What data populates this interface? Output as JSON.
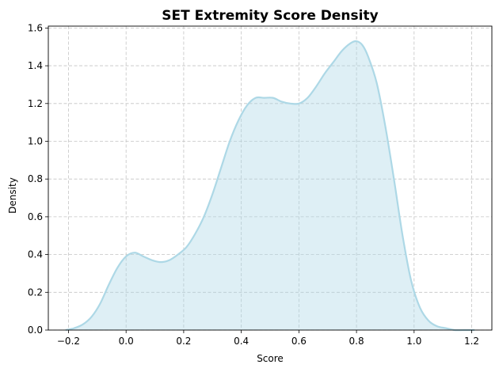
{
  "chart_data": {
    "type": "area",
    "title": "SET Extremity Score Density",
    "xlabel": "Score",
    "ylabel": "Density",
    "xlim": [
      -0.27,
      1.27
    ],
    "ylim": [
      0.0,
      1.61
    ],
    "xticks": [
      -0.2,
      0.0,
      0.2,
      0.4,
      0.6,
      0.8,
      1.0,
      1.2
    ],
    "yticks": [
      0.0,
      0.2,
      0.4,
      0.6,
      0.8,
      1.0,
      1.2,
      1.4,
      1.6
    ],
    "xtick_labels": [
      "−0.2",
      "0.0",
      "0.2",
      "0.4",
      "0.6",
      "0.8",
      "1.0",
      "1.2"
    ],
    "ytick_labels": [
      "0.0",
      "0.2",
      "0.4",
      "0.6",
      "0.8",
      "1.0",
      "1.2",
      "1.4",
      "1.6"
    ],
    "grid": true,
    "series": [
      {
        "x": [
          -0.21,
          -0.18,
          -0.15,
          -0.12,
          -0.09,
          -0.06,
          -0.03,
          0.0,
          0.03,
          0.06,
          0.09,
          0.12,
          0.15,
          0.18,
          0.21,
          0.24,
          0.27,
          0.3,
          0.33,
          0.36,
          0.39,
          0.42,
          0.45,
          0.48,
          0.51,
          0.54,
          0.57,
          0.6,
          0.63,
          0.66,
          0.69,
          0.72,
          0.75,
          0.78,
          0.8,
          0.82,
          0.84,
          0.87,
          0.9,
          0.93,
          0.96,
          0.99,
          1.02,
          1.05,
          1.08,
          1.11,
          1.14,
          1.17,
          1.21
        ],
        "y": [
          0.0,
          0.01,
          0.03,
          0.07,
          0.14,
          0.24,
          0.33,
          0.39,
          0.41,
          0.39,
          0.37,
          0.36,
          0.37,
          0.4,
          0.44,
          0.51,
          0.6,
          0.72,
          0.86,
          1.0,
          1.11,
          1.19,
          1.23,
          1.23,
          1.23,
          1.21,
          1.2,
          1.2,
          1.23,
          1.29,
          1.36,
          1.42,
          1.48,
          1.52,
          1.53,
          1.51,
          1.45,
          1.31,
          1.08,
          0.8,
          0.5,
          0.26,
          0.12,
          0.05,
          0.02,
          0.01,
          0.0,
          0.0,
          0.0
        ]
      }
    ],
    "line_color": "#add8e6",
    "fill_color": "#add8e6"
  }
}
